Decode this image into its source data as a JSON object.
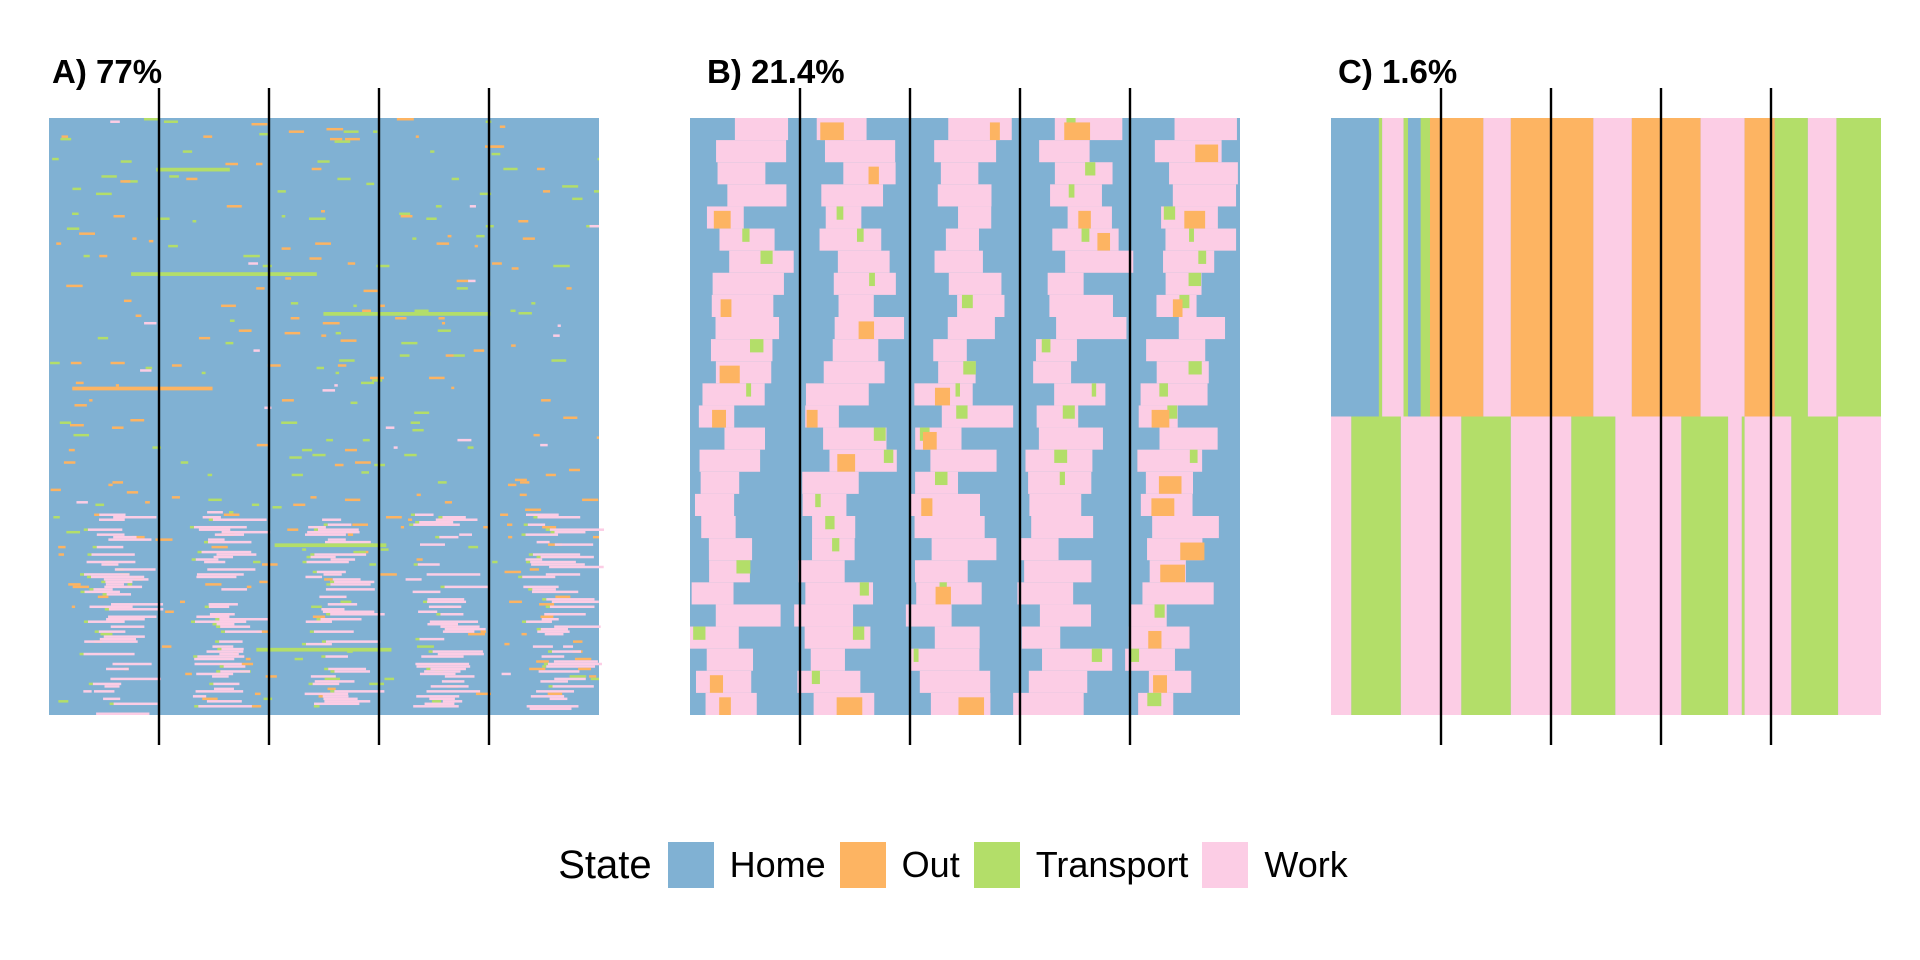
{
  "chart_data": {
    "type": "heatmap",
    "description_kind": "sequence index plots",
    "legend": {
      "title": "State",
      "placement": "bottom",
      "states": [
        {
          "name": "Home",
          "color": "#80b1d3"
        },
        {
          "name": "Out",
          "color": "#fdb462"
        },
        {
          "name": "Transport",
          "color": "#b3de69"
        },
        {
          "name": "Work",
          "color": "#fccde5"
        }
      ]
    },
    "x_divisions": 5,
    "panels": [
      {
        "title": "A) 77%",
        "kind": "many",
        "rows": 240,
        "segments": [
          {
            "state": "Home",
            "from": 0,
            "to": 0.2,
            "row_from": 0,
            "row_to": 1
          },
          {
            "state": "Home",
            "from": 0.2,
            "to": 0.4,
            "row_from": 0,
            "row_to": 1
          },
          {
            "state": "Home",
            "from": 0.4,
            "to": 0.6,
            "row_from": 0,
            "row_to": 1
          },
          {
            "state": "Home",
            "from": 0.6,
            "to": 0.8,
            "row_from": 0,
            "row_to": 1
          },
          {
            "state": "Home",
            "from": 0.8,
            "to": 1.0,
            "row_from": 0,
            "row_to": 1
          }
        ]
      },
      {
        "title": "B) 21.4%",
        "kind": "mixed",
        "rows": 27
      },
      {
        "title": "C) 1.6%",
        "kind": "few",
        "rows": 2,
        "row_sequences": [
          [
            [
              "Home",
              0.0,
              0.087
            ],
            [
              "Transport",
              0.087,
              0.093
            ],
            [
              "Work",
              0.093,
              0.132
            ],
            [
              "Transport",
              0.132,
              0.14
            ],
            [
              "Home",
              0.14,
              0.163
            ],
            [
              "Transport",
              0.163,
              0.18
            ],
            [
              "Out",
              0.18,
              0.277
            ],
            [
              "Work",
              0.277,
              0.327
            ],
            [
              "Out",
              0.327,
              0.477
            ],
            [
              "Work",
              0.477,
              0.547
            ],
            [
              "Out",
              0.547,
              0.672
            ],
            [
              "Work",
              0.672,
              0.752
            ],
            [
              "Out",
              0.752,
              0.807
            ],
            [
              "Transport",
              0.807,
              0.867
            ],
            [
              "Work",
              0.867,
              0.919
            ],
            [
              "Transport",
              0.919,
              1.0
            ]
          ],
          [
            [
              "Work",
              0.0,
              0.037
            ],
            [
              "Transport",
              0.037,
              0.127
            ],
            [
              "Work",
              0.127,
              0.237
            ],
            [
              "Transport",
              0.237,
              0.327
            ],
            [
              "Work",
              0.327,
              0.437
            ],
            [
              "Transport",
              0.437,
              0.517
            ],
            [
              "Work",
              0.517,
              0.637
            ],
            [
              "Transport",
              0.637,
              0.722
            ],
            [
              "Work",
              0.722,
              0.747
            ],
            [
              "Transport",
              0.747,
              0.752
            ],
            [
              "Work",
              0.752,
              0.837
            ],
            [
              "Transport",
              0.837,
              0.922
            ],
            [
              "Work",
              0.922,
              1.0
            ]
          ]
        ]
      }
    ]
  }
}
